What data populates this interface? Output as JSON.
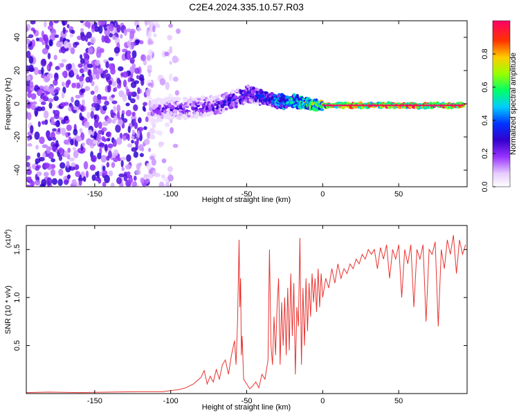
{
  "chart_data": [
    {
      "type": "heatmap",
      "title": "C2E4.2024.335.10.57.R03",
      "xlabel": "Height of straight line (km)",
      "ylabel": "Frequency (Hz)",
      "xlim": [
        -195,
        95
      ],
      "ylim": [
        -50,
        50
      ],
      "x_ticks": [
        -150,
        -100,
        -50,
        0,
        50
      ],
      "x_tick_labels": [
        "-150",
        "-100",
        "-50",
        "0",
        "50"
      ],
      "y_ticks": [
        -40,
        -20,
        0,
        20,
        40
      ],
      "y_tick_labels": [
        "-40",
        "-20",
        "0",
        "20",
        "40"
      ],
      "colorbar": {
        "label": "Normalized spectral amplitude",
        "range": [
          0,
          1
        ],
        "ticks": [
          0.0,
          0.2,
          0.4,
          0.6,
          0.8
        ],
        "tick_labels": [
          "0.0",
          "0.2",
          "0.4",
          "0.6",
          "0.8"
        ],
        "colors": [
          "#ffffff",
          "#cc99ff",
          "#6600cc",
          "#0000ff",
          "#00ccff",
          "#00ff66",
          "#ccff00",
          "#ff9900",
          "#ff0000",
          "#ff0066"
        ]
      },
      "noise_region_x": [
        -195,
        -95
      ],
      "ridge": {
        "x": [
          -112,
          -100,
          -90,
          -80,
          -70,
          -60,
          -55,
          -50,
          -45,
          -40,
          -35,
          -30,
          -25,
          -20,
          -15,
          -10,
          -5,
          0,
          10,
          20,
          40,
          60,
          80,
          93
        ],
        "frequency": [
          -4,
          -3,
          -3,
          -2,
          -1,
          2,
          4,
          6,
          5,
          4,
          3,
          2,
          1,
          2,
          1,
          0,
          -1,
          -1,
          -1,
          -1,
          -1,
          -1,
          -1,
          -1
        ],
        "amplitude": [
          0.25,
          0.28,
          0.3,
          0.3,
          0.32,
          0.35,
          0.38,
          0.4,
          0.4,
          0.42,
          0.45,
          0.55,
          0.6,
          0.6,
          0.65,
          0.7,
          0.75,
          0.8,
          0.85,
          0.9,
          0.95,
          0.95,
          0.95,
          0.95
        ]
      }
    },
    {
      "type": "line",
      "xlabel": "Height of straight line (km)",
      "ylabel": "SNR (10 * v/v)",
      "y_multiplier": "(x10⁴)",
      "y_multiplier_base": "(x10",
      "y_multiplier_exp": "4",
      "xlim": [
        -195,
        95
      ],
      "ylim": [
        0,
        1.75
      ],
      "x_ticks": [
        -150,
        -100,
        -50,
        0,
        50
      ],
      "x_tick_labels": [
        "-150",
        "-100",
        "-50",
        "0",
        "50"
      ],
      "y_ticks": [
        0.5,
        1.0,
        1.5
      ],
      "y_tick_labels": [
        "0.5",
        "1.0",
        "1.5"
      ],
      "series": [
        {
          "name": "SNR",
          "color": "#e8322e",
          "x": [
            -195,
            -180,
            -160,
            -140,
            -120,
            -105,
            -100,
            -95,
            -90,
            -85,
            -80,
            -78,
            -76,
            -74,
            -72,
            -70,
            -68,
            -66,
            -64,
            -62,
            -60,
            -58,
            -57,
            -56,
            -55,
            -54.5,
            -54,
            -53.5,
            -53,
            -52,
            -50,
            -48,
            -46,
            -44,
            -42,
            -40,
            -38,
            -36,
            -35,
            -34,
            -33,
            -32,
            -31,
            -30,
            -29,
            -28,
            -27,
            -26,
            -25,
            -24,
            -23,
            -22,
            -21,
            -20,
            -19,
            -18,
            -17,
            -16,
            -15,
            -14,
            -13,
            -12,
            -11,
            -10,
            -9,
            -8,
            -7,
            -6,
            -5,
            -4,
            -3,
            -2,
            -1,
            0,
            2,
            4,
            6,
            8,
            10,
            12,
            14,
            16,
            18,
            20,
            22,
            24,
            26,
            28,
            30,
            32,
            34,
            36,
            38,
            40,
            42,
            44,
            46,
            48,
            50,
            52,
            54,
            56,
            58,
            60,
            62,
            64,
            66,
            68,
            70,
            72,
            74,
            76,
            78,
            80,
            82,
            84,
            86,
            88,
            90,
            92,
            94
          ],
          "values": [
            0.01,
            0.015,
            0.01,
            0.015,
            0.02,
            0.02,
            0.03,
            0.04,
            0.06,
            0.1,
            0.17,
            0.24,
            0.1,
            0.18,
            0.12,
            0.25,
            0.15,
            0.3,
            0.35,
            0.2,
            0.4,
            0.55,
            0.3,
            0.75,
            1.6,
            0.9,
            1.2,
            0.4,
            0.6,
            0.15,
            0.1,
            0.05,
            0.08,
            0.12,
            0.06,
            0.2,
            0.15,
            0.35,
            1.5,
            0.5,
            0.3,
            0.8,
            0.4,
            0.9,
            1.2,
            0.3,
            0.95,
            0.5,
            1.0,
            0.4,
            1.1,
            0.45,
            1.25,
            0.6,
            1.15,
            0.2,
            0.9,
            0.7,
            1.62,
            0.3,
            1.1,
            0.5,
            1.2,
            0.65,
            1.15,
            0.8,
            1.25,
            0.95,
            1.2,
            0.85,
            1.3,
            0.9,
            1.25,
            1.0,
            1.2,
            1.1,
            1.3,
            1.15,
            1.35,
            1.2,
            1.3,
            1.25,
            1.35,
            1.3,
            1.4,
            1.35,
            1.45,
            1.4,
            1.5,
            1.45,
            1.5,
            1.3,
            1.52,
            1.4,
            1.55,
            1.2,
            1.5,
            1.4,
            1.55,
            1.0,
            1.5,
            1.35,
            1.55,
            0.9,
            1.5,
            1.4,
            1.55,
            0.75,
            1.5,
            1.45,
            1.58,
            0.7,
            1.5,
            1.3,
            1.6,
            1.45,
            1.65,
            1.25,
            1.6,
            1.45,
            1.55
          ]
        }
      ]
    }
  ]
}
